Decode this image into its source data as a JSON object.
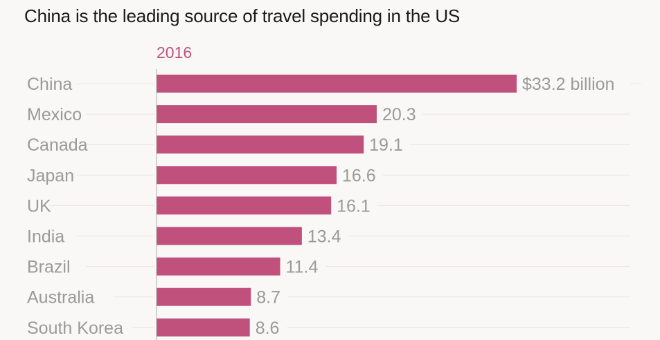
{
  "title": "China is the leading source of travel spending in the US",
  "colors": {
    "bar": "#bf517c",
    "series_label": "#bf517c",
    "text": "#9a9a9a",
    "grid": "#e8e5e1",
    "axis": "#aaaaaa",
    "background": "#f9f8f6"
  },
  "chart_data": {
    "type": "bar",
    "orientation": "horizontal",
    "title": "China is the leading source of travel spending in the US",
    "series_label": "2016",
    "categories": [
      "China",
      "Mexico",
      "Canada",
      "Japan",
      "UK",
      "India",
      "Brazil",
      "Australia",
      "South Korea"
    ],
    "values": [
      33.2,
      20.3,
      19.1,
      16.6,
      16.1,
      13.4,
      11.4,
      8.7,
      8.6
    ],
    "value_labels": [
      "$33.2 billion",
      "20.3",
      "19.1",
      "16.6",
      "16.1",
      "13.4",
      "11.4",
      "8.7",
      "8.6"
    ],
    "unit": "billion USD",
    "xlim": [
      0,
      33.2
    ],
    "grid": true,
    "legend": "none"
  }
}
